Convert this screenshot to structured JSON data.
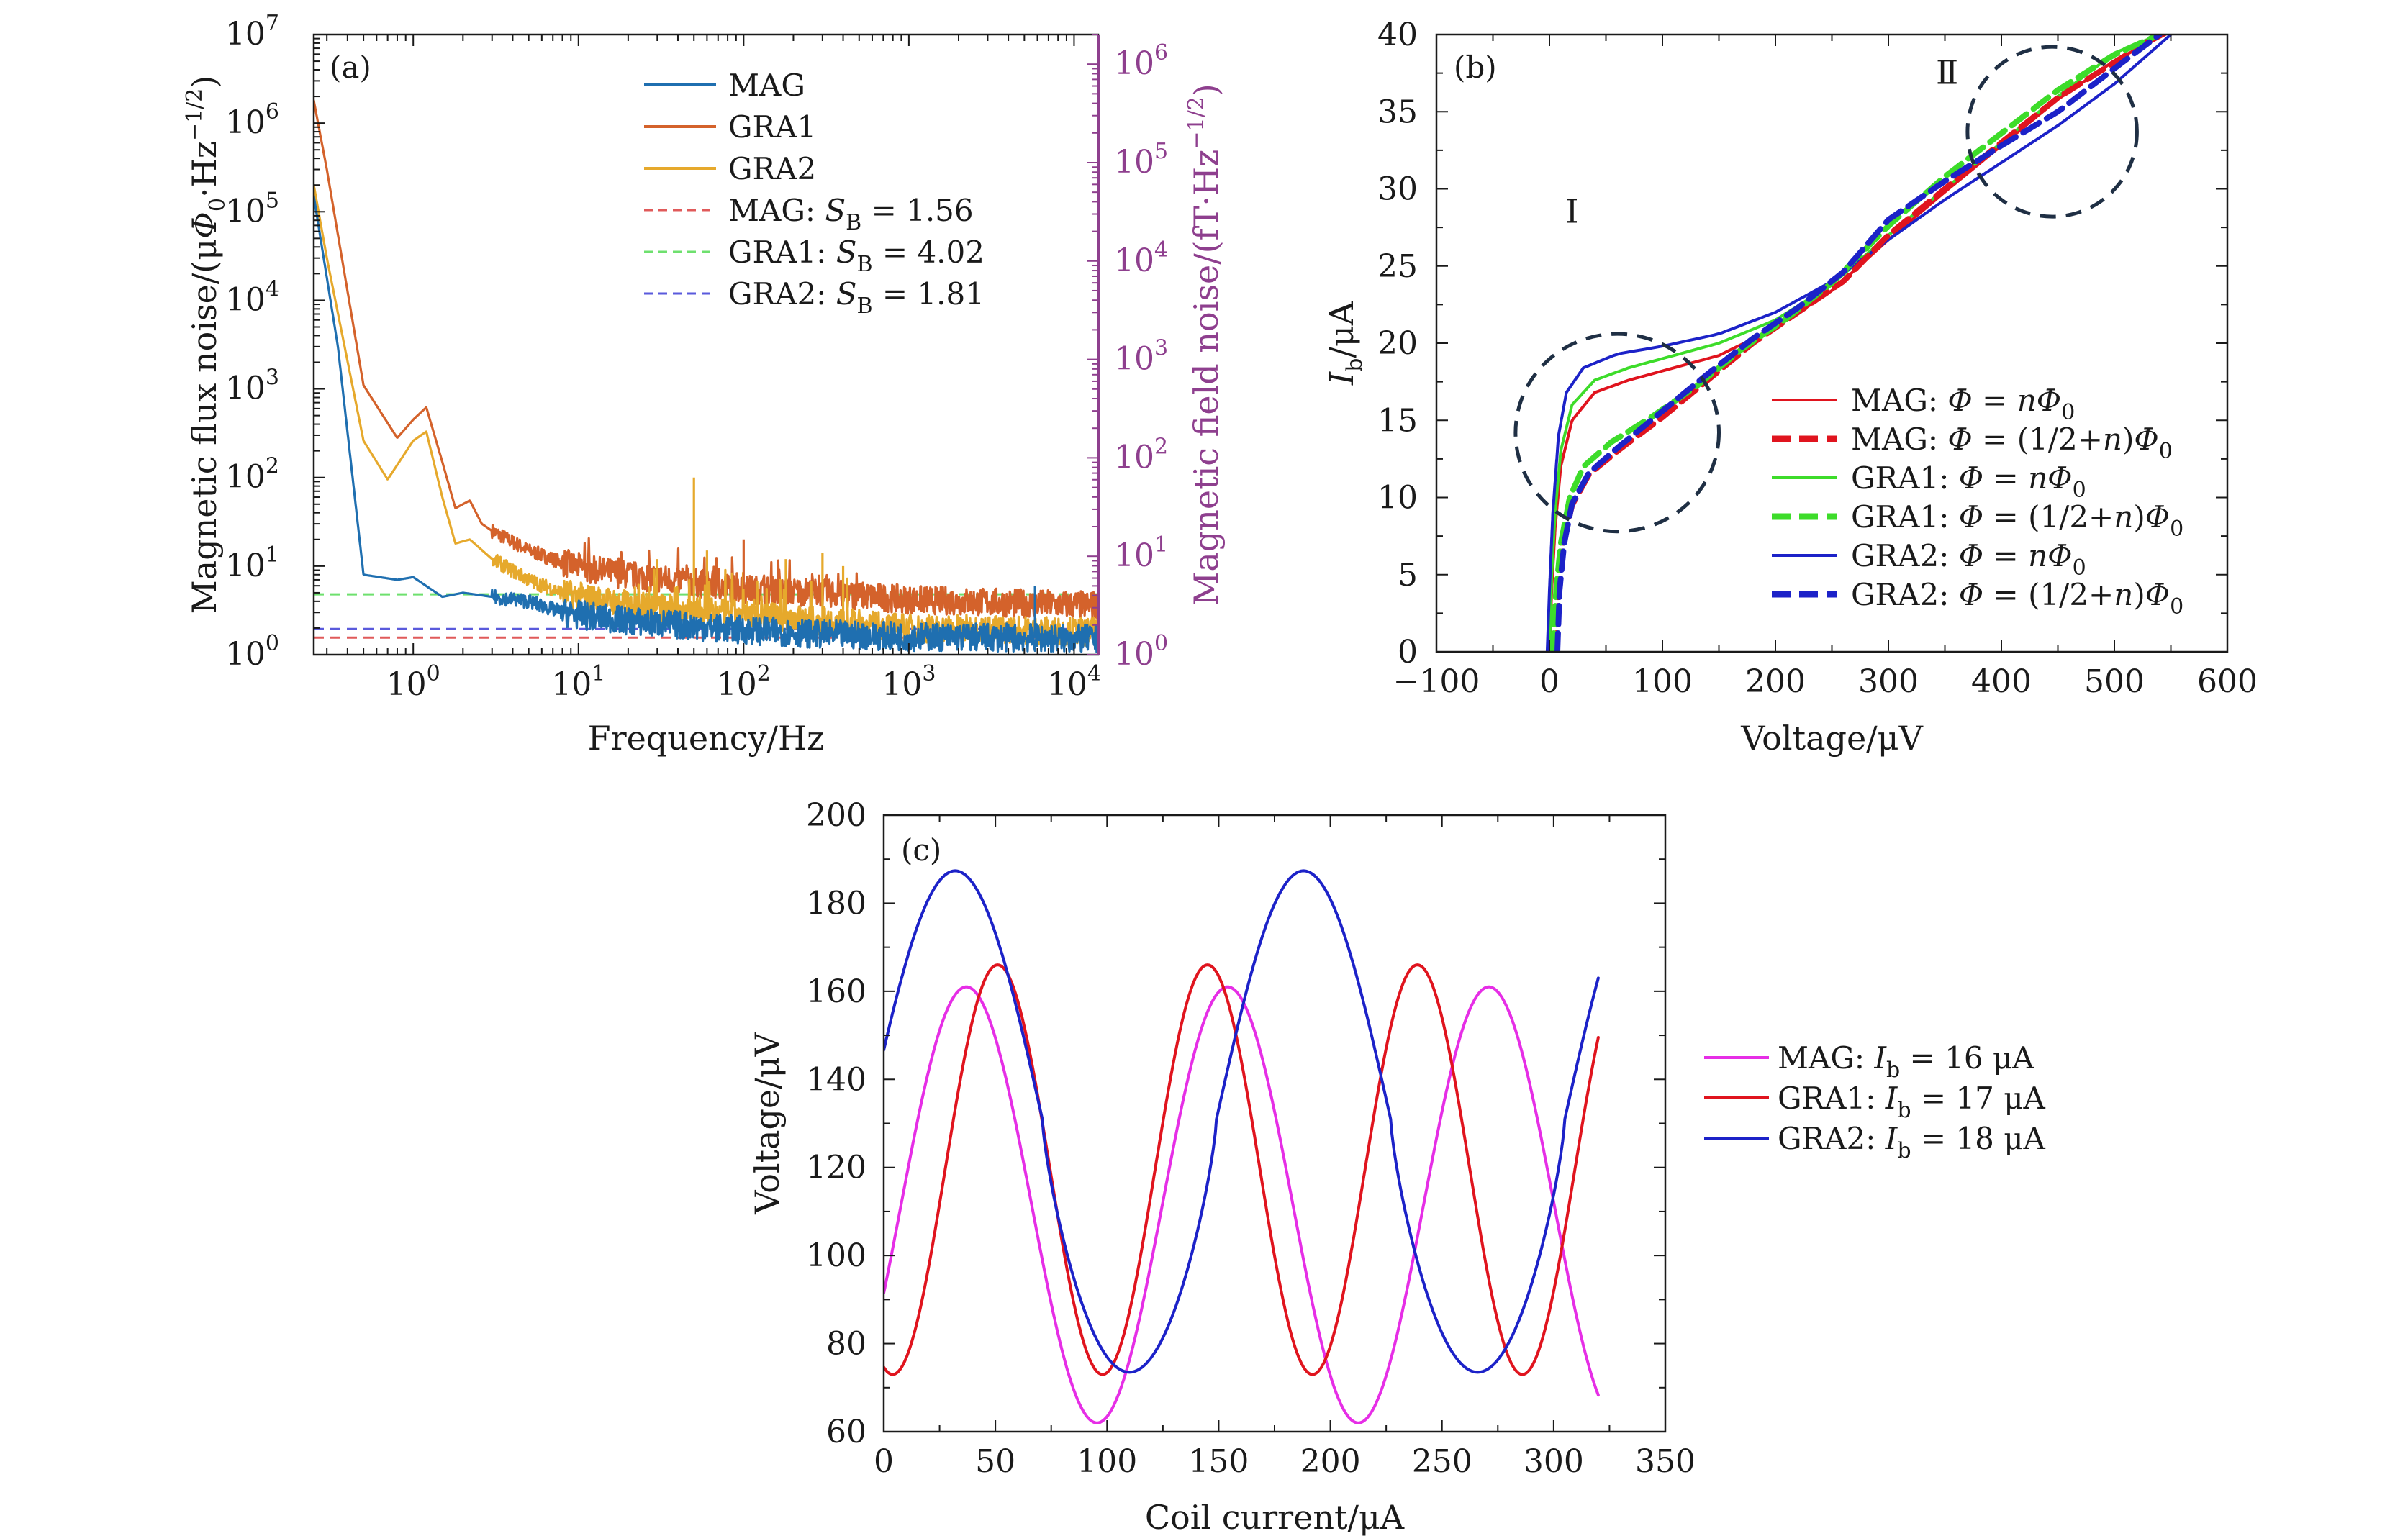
{
  "colors": {
    "mag_a": "#1f6fb0",
    "gra1_a": "#d4622b",
    "gra2_a": "#e6a92c",
    "ref_mag": "#e05a5a",
    "ref_gra1": "#6ee06e",
    "ref_gra2": "#5a5adc",
    "red": "#e0141e",
    "green": "#3ddc2a",
    "blue": "#1c22c8",
    "magenta": "#e62ee6",
    "circle": "#1f2f44",
    "right_axis": "#8e3f8e"
  },
  "chart_data": [
    {
      "id": "a",
      "panel_label": "(a)",
      "type": "line",
      "x_scale": "log",
      "y_scale": "log",
      "xlabel": "Frequency/Hz",
      "ylabel": "Magnetic flux noise/(μΦ₀·Hz⁻¹/²)",
      "y2label": "Magnetic field noise/(fT·Hz⁻¹/²)",
      "xlim": [
        0.25,
        14000
      ],
      "ylim": [
        1,
        10000000
      ],
      "y2lim": [
        1,
        2000000
      ],
      "x_ticks": [
        "10⁰",
        "10¹",
        "10²",
        "10³",
        "10⁴"
      ],
      "y_ticks": [
        "10⁰",
        "10¹",
        "10²",
        "10³",
        "10⁴",
        "10⁵",
        "10⁶",
        "10⁷"
      ],
      "y2_ticks": [
        "10⁰",
        "10¹",
        "10²",
        "10³",
        "10⁴",
        "10⁵",
        "10⁶"
      ],
      "series": [
        {
          "name": "MAG",
          "x": [
            0.25,
            0.35,
            0.5,
            0.8,
            1.0,
            1.5,
            2.0,
            3,
            5,
            8,
            12,
            20,
            50,
            100,
            300,
            1000,
            5000,
            14000
          ],
          "y": [
            150000,
            3000,
            8,
            7,
            7.5,
            4.5,
            5,
            4.5,
            4,
            3,
            2.7,
            2.4,
            2.1,
            1.9,
            1.7,
            1.6,
            1.55,
            1.5
          ]
        },
        {
          "name": "GRA1",
          "x": [
            0.25,
            0.3,
            0.5,
            0.8,
            1.0,
            1.2,
            1.5,
            1.8,
            2.2,
            2.6,
            3,
            5,
            8,
            12,
            20,
            50,
            100,
            300,
            1000,
            5000,
            14000
          ],
          "y": [
            1800000,
            300000,
            1100,
            280,
            450,
            620,
            150,
            45,
            55,
            30,
            25,
            15,
            11,
            9,
            8,
            6.5,
            5.5,
            5,
            4.2,
            3.8,
            3.6
          ]
        },
        {
          "name": "GRA2",
          "x": [
            0.25,
            0.3,
            0.5,
            0.7,
            1.0,
            1.2,
            1.5,
            1.8,
            2.2,
            3,
            5,
            8,
            12,
            20,
            50,
            100,
            300,
            1000,
            5000,
            14000
          ],
          "y": [
            200000,
            30000,
            260,
            95,
            260,
            330,
            60,
            18,
            20,
            12,
            7,
            5,
            4.3,
            3.7,
            3.1,
            2.8,
            2.4,
            2.0,
            1.9,
            1.8
          ]
        }
      ],
      "spikes": [
        {
          "series": "GRA2",
          "x": 30,
          "y": 12
        },
        {
          "series": "GRA2",
          "x": 50,
          "y": 100
        },
        {
          "series": "GRA2",
          "x": 60,
          "y": 15
        },
        {
          "series": "GRA1",
          "x": 100,
          "y": 20
        },
        {
          "series": "GRA2",
          "x": 180,
          "y": 12
        },
        {
          "series": "GRA2",
          "x": 300,
          "y": 14
        },
        {
          "series": "GRA2",
          "x": 400,
          "y": 10
        },
        {
          "series": "MAG",
          "x": 5800,
          "y": 6
        }
      ],
      "reference_lines": [
        {
          "name": "MAG",
          "label_value": "1.56",
          "y": 1.56
        },
        {
          "name": "GRA1",
          "label_value": "4.02",
          "y": 4.8
        },
        {
          "name": "GRA2",
          "label_value": "1.81",
          "y": 1.95
        }
      ],
      "legend": {
        "placement": "top-right",
        "entries": [
          {
            "text": "MAG"
          },
          {
            "text": "GRA1"
          },
          {
            "text": "GRA2"
          },
          {
            "prefix": "MAG: ",
            "var": "S",
            "sub": "B",
            "eq": " = 1.56"
          },
          {
            "prefix": "GRA1: ",
            "var": "S",
            "sub": "B",
            "eq": " = 4.02"
          },
          {
            "prefix": "GRA2: ",
            "var": "S",
            "sub": "B",
            "eq": " = 1.81"
          }
        ]
      }
    },
    {
      "id": "b",
      "panel_label": "(b)",
      "type": "line",
      "xlabel": "Voltage/μV",
      "ylabel_var": "I",
      "ylabel_sub": "b",
      "ylabel_tail": "/μA",
      "xlim": [
        -100,
        600
      ],
      "ylim": [
        0,
        40
      ],
      "x_ticks": [
        "−100",
        "0",
        "100",
        "200",
        "300",
        "400",
        "500",
        "600"
      ],
      "y_ticks": [
        "0",
        "5",
        "10",
        "15",
        "20",
        "25",
        "30",
        "35",
        "40"
      ],
      "series": [
        {
          "name": "MAG: Φ = nΦ₀",
          "style": "solid",
          "color_key": "red",
          "x": [
            0,
            2,
            5,
            10,
            20,
            40,
            70,
            100,
            150,
            200,
            250,
            300,
            350,
            400,
            450,
            500,
            545
          ],
          "y": [
            0,
            4,
            8,
            12,
            15,
            16.8,
            17.6,
            18.2,
            19.2,
            21,
            23.4,
            26.7,
            29.8,
            32.8,
            35.8,
            38.3,
            40
          ]
        },
        {
          "name": "MAG: Φ = (1/2+n)Φ₀",
          "style": "dashed",
          "color_key": "red",
          "x": [
            5,
            8,
            12,
            20,
            35,
            60,
            100,
            140,
            180,
            220,
            260,
            300,
            350,
            400,
            450,
            500,
            540
          ],
          "y": [
            0,
            4,
            7,
            9.5,
            11.5,
            13,
            15.2,
            17.6,
            20,
            22,
            24,
            27,
            30,
            33,
            35.9,
            38.2,
            40
          ]
        },
        {
          "name": "GRA1: Φ = nΦ₀",
          "style": "solid",
          "color_key": "green",
          "x": [
            0,
            2,
            5,
            10,
            20,
            40,
            70,
            100,
            150,
            200,
            250,
            300,
            350,
            400,
            450,
            500,
            540
          ],
          "y": [
            0,
            5,
            9,
            13,
            16,
            17.6,
            18.4,
            19,
            20,
            21.5,
            23.8,
            27,
            30,
            33,
            36,
            38.8,
            40
          ]
        },
        {
          "name": "GRA1: Φ = (1/2+n)Φ₀",
          "style": "dashed",
          "color_key": "green",
          "x": [
            3,
            6,
            10,
            18,
            30,
            55,
            90,
            130,
            170,
            210,
            250,
            300,
            350,
            400,
            450,
            500,
            540
          ],
          "y": [
            0,
            4,
            7,
            10,
            12,
            13.6,
            15.2,
            17.2,
            19.6,
            21.6,
            23.9,
            27.6,
            30.8,
            33.6,
            36.4,
            38.7,
            40
          ]
        },
        {
          "name": "GRA2: Φ = nΦ₀",
          "style": "solid",
          "color_key": "blue",
          "x": [
            -2,
            0,
            3,
            8,
            15,
            30,
            60,
            100,
            150,
            200,
            250,
            300,
            350,
            400,
            450,
            500,
            550
          ],
          "y": [
            0,
            4,
            9,
            14,
            16.8,
            18.4,
            19.3,
            19.8,
            20.6,
            22,
            24,
            26.7,
            29.3,
            31.7,
            34.1,
            36.8,
            40
          ]
        },
        {
          "name": "GRA2: Φ = (1/2+n)Φ₀",
          "style": "dashed",
          "color_key": "blue",
          "x": [
            7,
            9,
            13,
            20,
            35,
            60,
            100,
            140,
            180,
            220,
            260,
            300,
            350,
            400,
            450,
            500,
            540
          ],
          "y": [
            0,
            4,
            7,
            9.6,
            11.6,
            13.2,
            15.6,
            18,
            20.3,
            22.3,
            24.6,
            28,
            30.5,
            32.8,
            35,
            37.8,
            40
          ]
        }
      ],
      "annotations": [
        {
          "text": "Ⅰ",
          "x": 20,
          "y": 44.5
        },
        {
          "text": "Ⅱ",
          "x": 350,
          "y": 37
        }
      ],
      "circles": [
        {
          "cx": 60,
          "cy": 14.2,
          "rx": 90,
          "ry": 6.4
        },
        {
          "cx": 445,
          "cy": 33.7,
          "rx": 75,
          "ry": 5.5
        }
      ],
      "legend": {
        "placement": "bottom-right",
        "entries": [
          {
            "prefix": "MAG: ",
            "expr": "Φ = nΦ",
            "sub": "0"
          },
          {
            "prefix": "MAG: ",
            "expr": "Φ = (1/2+n)Φ",
            "sub": "0"
          },
          {
            "prefix": "GRA1: ",
            "expr": "Φ = nΦ",
            "sub": "0"
          },
          {
            "prefix": "GRA1: ",
            "expr": "Φ = (1/2+n)Φ",
            "sub": "0"
          },
          {
            "prefix": "GRA2: ",
            "expr": "Φ = nΦ",
            "sub": "0"
          },
          {
            "prefix": "GRA2: ",
            "expr": "Φ = (1/2+n)Φ",
            "sub": "0"
          }
        ]
      }
    },
    {
      "id": "c",
      "panel_label": "(c)",
      "type": "line",
      "xlabel": "Coil current/μA",
      "ylabel": "Voltage/μV",
      "xlim": [
        0,
        350
      ],
      "ylim": [
        60,
        200
      ],
      "x_ticks": [
        "0",
        "50",
        "100",
        "150",
        "200",
        "250",
        "300",
        "350"
      ],
      "y_ticks": [
        "60",
        "80",
        "100",
        "120",
        "140",
        "160",
        "180",
        "200"
      ],
      "series": [
        {
          "name": "MAG",
          "color_key": "magenta",
          "model": {
            "offset": 111.5,
            "amp": 49.5,
            "period": 117,
            "phase_peak": 37,
            "trough_shift": 0.06
          },
          "x_range": [
            0,
            320
          ]
        },
        {
          "name": "GRA1",
          "color_key": "red",
          "model": {
            "offset": 119.5,
            "amp": 46.5,
            "period": 94,
            "phase_peak": 51
          },
          "x_range": [
            0,
            320
          ]
        },
        {
          "name": "GRA2",
          "color_key": "blue",
          "model": {
            "offset": 131,
            "amp": 57.5,
            "period": 156,
            "phase_peak": 32
          },
          "x_range": [
            0,
            320
          ]
        }
      ],
      "legend": {
        "placement": "right",
        "entries": [
          {
            "prefix": "MAG: ",
            "var": "I",
            "sub": "b",
            "eq": " = 16 μA"
          },
          {
            "prefix": "GRA1: ",
            "var": "I",
            "sub": "b",
            "eq": " = 17 μA"
          },
          {
            "prefix": "GRA2: ",
            "var": "I",
            "sub": "b",
            "eq": " = 18 μA"
          }
        ]
      }
    }
  ]
}
